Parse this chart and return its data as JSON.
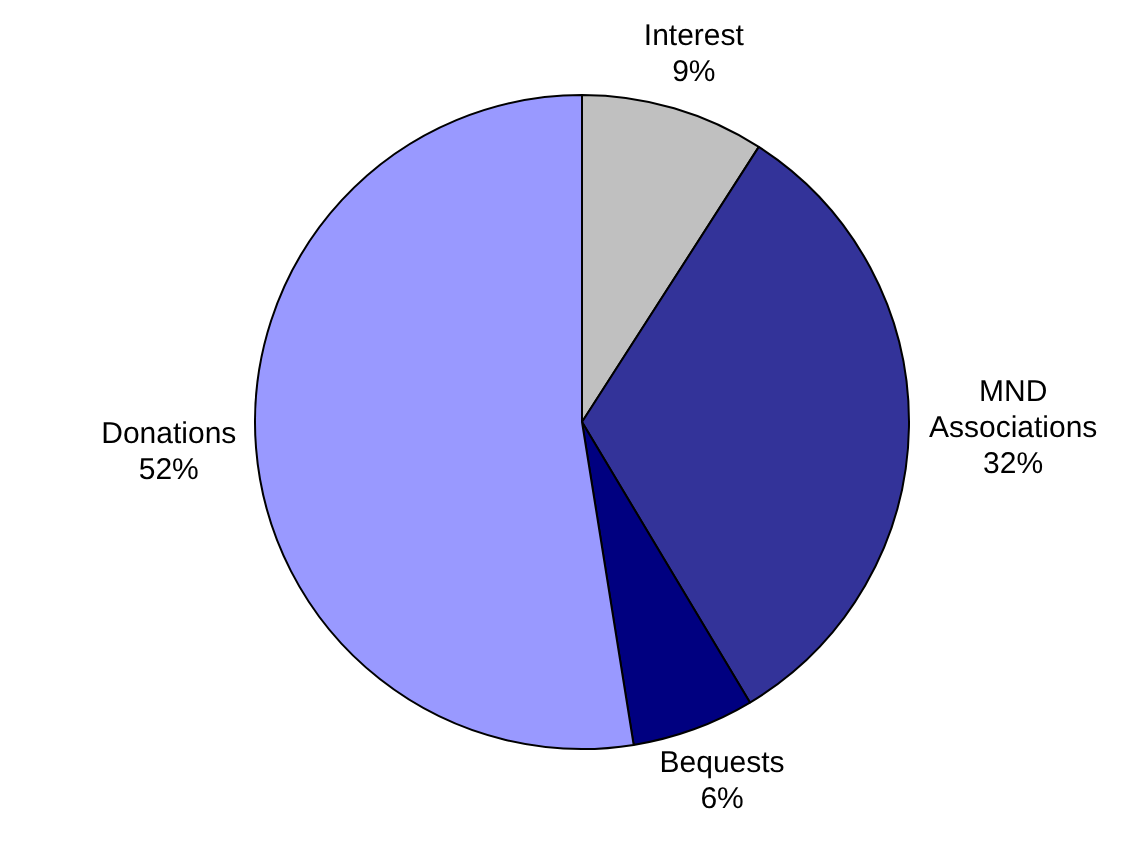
{
  "chart_data": {
    "type": "pie",
    "categories": [
      "Interest",
      "MND Associations",
      "Bequests",
      "Donations"
    ],
    "values": [
      9,
      32,
      6,
      52
    ],
    "value_labels": [
      "9%",
      "32%",
      "6%",
      "52%"
    ],
    "colors": [
      "#c0c0c0",
      "#333399",
      "#000080",
      "#9999ff"
    ],
    "legend": false
  }
}
